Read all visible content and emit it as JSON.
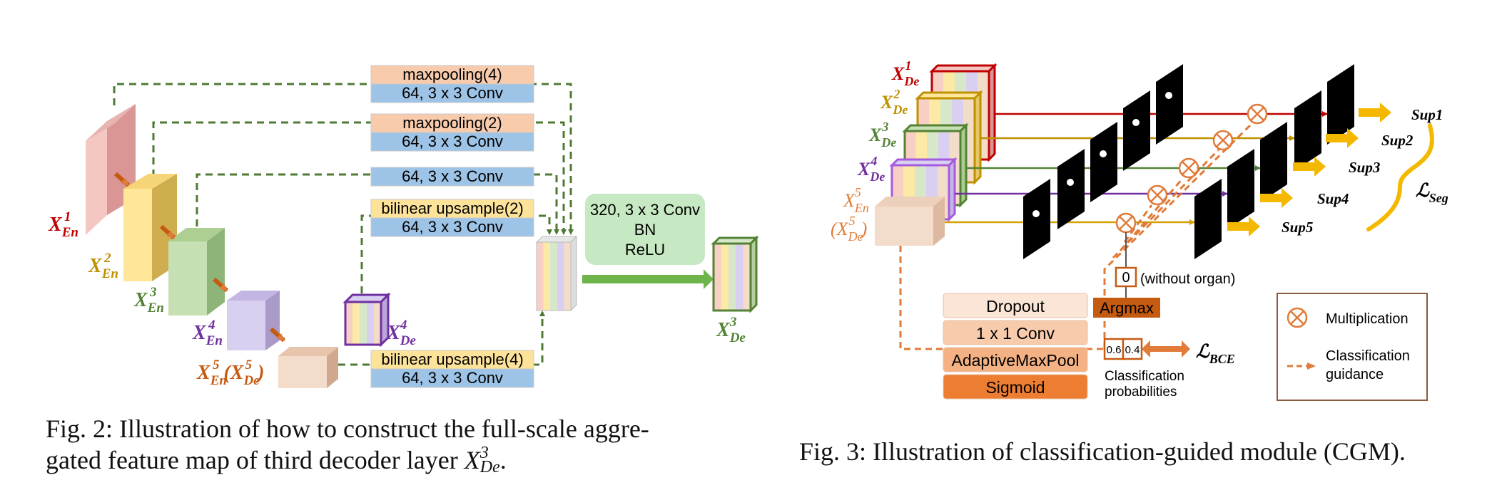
{
  "fig2": {
    "ops": {
      "maxpool4": "maxpooling(4)",
      "conv1": "64, 3 x 3 Conv",
      "maxpool2": "maxpooling(2)",
      "conv2": "64, 3 x 3 Conv",
      "conv3": "64, 3 x 3 Conv",
      "upsample2": "bilinear upsample(2)",
      "conv4": "64, 3 x 3 Conv",
      "upsample4": "bilinear upsample(4)",
      "conv5": "64, 3 x 3 Conv"
    },
    "fuse": {
      "line1": "320, 3 x 3 Conv",
      "line2": "BN",
      "line3": "ReLU"
    },
    "labels": {
      "en1": {
        "base": "X",
        "sub": "En",
        "sup": "1"
      },
      "en2": {
        "base": "X",
        "sub": "En",
        "sup": "2"
      },
      "en3": {
        "base": "X",
        "sub": "En",
        "sup": "3"
      },
      "en4": {
        "base": "X",
        "sub": "En",
        "sup": "4"
      },
      "en5": {
        "base": "X",
        "sub": "En",
        "sup": "5"
      },
      "en5_paren": {
        "open": "(",
        "base": "X",
        "sub": "De",
        "sup": "5",
        "close": ")"
      },
      "de4": {
        "base": "X",
        "sub": "De",
        "sup": "4"
      },
      "de3": {
        "base": "X",
        "sub": "De",
        "sup": "3"
      }
    },
    "caption_line1": "Fig. 2: Illustration of how to construct the full-scale aggre-",
    "caption_line2_prefix": "gated feature map of third decoder layer ",
    "caption_math": {
      "base": "X",
      "sub": "De",
      "sup": "3"
    },
    "caption_line2_suffix": "."
  },
  "fig3": {
    "labels": {
      "de1": {
        "base": "X",
        "sub": "De",
        "sup": "1"
      },
      "de2": {
        "base": "X",
        "sub": "De",
        "sup": "2"
      },
      "de3": {
        "base": "X",
        "sub": "De",
        "sup": "3"
      },
      "de4": {
        "base": "X",
        "sub": "De",
        "sup": "4"
      },
      "en5": {
        "base": "X",
        "sub": "En",
        "sup": "5"
      },
      "de5_paren": {
        "open": "(",
        "base": "X",
        "sub": "De",
        "sup": "5",
        "close": ")"
      }
    },
    "sups": [
      "Sup1",
      "Sup2",
      "Sup3",
      "Sup4",
      "Sup5"
    ],
    "loss_seg": {
      "base": "ℒ",
      "sub": "Seg"
    },
    "loss_bce": {
      "base": "ℒ",
      "sub": "BCE"
    },
    "zero_box": "0",
    "without_organ": "(without organ)",
    "argmax": "Argmax",
    "layers": [
      "Dropout",
      "1 x 1 Conv",
      "AdaptiveMaxPool",
      "Sigmoid"
    ],
    "probs": [
      "0.6",
      "0.4"
    ],
    "prob_label_line1": "Classification",
    "prob_label_line2": "probabilities",
    "legend": {
      "mult_label": "Multiplication",
      "guide_line1": "Classification",
      "guide_line2": "guidance"
    },
    "caption": "Fig. 3: Illustration of classification-guided module (CGM)."
  },
  "colors": {
    "green_dash": "#4f7a34",
    "en_red": "#c00000",
    "en_yellow": "#bf9000",
    "en_green": "#548235",
    "en_purple": "#7030a0",
    "en_orange": "#c55a11",
    "orange_ui": "#e07b39",
    "gold": "#f5b800"
  }
}
